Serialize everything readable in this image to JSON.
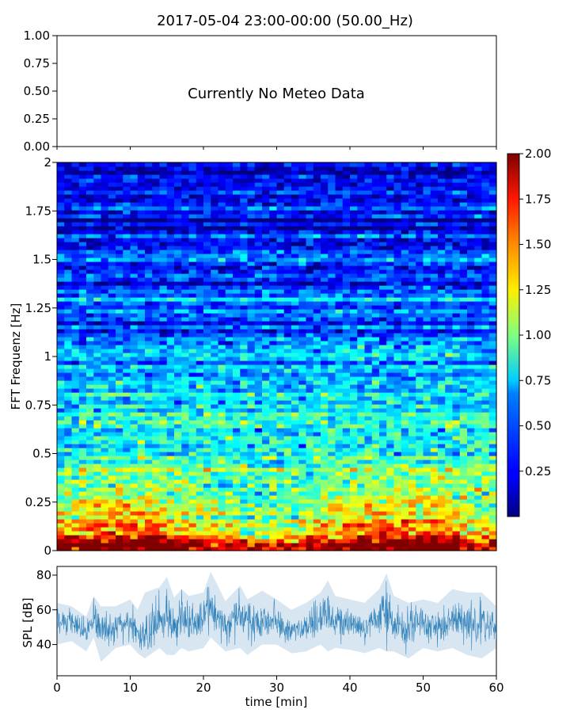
{
  "chart_data": [
    {
      "type": "line",
      "panel": "meteo",
      "title": "2017-05-04 23:00-00:00 (50.00_Hz)",
      "annotation": "Currently No Meteo Data",
      "ylim": [
        0,
        1
      ],
      "yticks": [
        "1.00",
        "0.75",
        "0.50",
        "0.25",
        "0.00"
      ],
      "series": []
    },
    {
      "type": "heatmap",
      "panel": "spectrogram",
      "ylabel": "FFT Frequenz [Hz]",
      "xlim": [
        0,
        60
      ],
      "ylim": [
        0,
        2
      ],
      "yticks": [
        "2",
        "1.75",
        "1.5",
        "1.25",
        "1",
        "0.75",
        "0.5",
        "0.25",
        "0"
      ],
      "colormap": "jet",
      "colorbar": {
        "range": [
          0,
          2
        ],
        "ticks": [
          "2.00",
          "1.75",
          "1.50",
          "1.25",
          "1.00",
          "0.75",
          "0.50",
          "0.25"
        ]
      },
      "mean_intensity_profile": [
        {
          "freq_hz": 0.0,
          "level": 1.9
        },
        {
          "freq_hz": 0.1,
          "level": 1.45
        },
        {
          "freq_hz": 0.25,
          "level": 1.1
        },
        {
          "freq_hz": 0.5,
          "level": 0.85
        },
        {
          "freq_hz": 0.75,
          "level": 0.7
        },
        {
          "freq_hz": 1.0,
          "level": 0.5
        },
        {
          "freq_hz": 1.25,
          "level": 0.42
        },
        {
          "freq_hz": 1.5,
          "level": 0.35
        },
        {
          "freq_hz": 1.75,
          "level": 0.22
        },
        {
          "freq_hz": 2.0,
          "level": 0.2
        }
      ]
    },
    {
      "type": "line",
      "panel": "spl",
      "xlabel": "time [min]",
      "ylabel": "SPL [dB]",
      "xlim": [
        0,
        60
      ],
      "ylim": [
        22,
        85
      ],
      "xticks": [
        "0",
        "10",
        "20",
        "30",
        "40",
        "50",
        "60"
      ],
      "yticks": [
        "80",
        "60",
        "40"
      ],
      "series": [
        {
          "color": "#1f77b4",
          "envelope": {
            "x": [
              0,
              2,
              4,
              5,
              6,
              8,
              10,
              11,
              12,
              14,
              15,
              16,
              17,
              18,
              20,
              21,
              23,
              25,
              26,
              28,
              30,
              32,
              34,
              36,
              37,
              38,
              40,
              42,
              44,
              45,
              46,
              48,
              50,
              52,
              54,
              56,
              58,
              60
            ],
            "mean": [
              52,
              54,
              46,
              56,
              49,
              51,
              53,
              47,
              46,
              55,
              58,
              49,
              57,
              53,
              56,
              60,
              50,
              57,
              52,
              55,
              53,
              48,
              50,
              55,
              58,
              53,
              52,
              50,
              57,
              60,
              53,
              50,
              52,
              50,
              55,
              54,
              51,
              51
            ],
            "min": [
              40,
              42,
              36,
              44,
              30,
              38,
              40,
              35,
              32,
              38,
              34,
              34,
              38,
              36,
              38,
              44,
              36,
              38,
              34,
              40,
              40,
              35,
              36,
              40,
              36,
              38,
              37,
              35,
              38,
              36,
              36,
              32,
              38,
              36,
              38,
              34,
              32,
              38
            ],
            "max": [
              64,
              62,
              56,
              68,
              62,
              62,
              66,
              60,
              70,
              73,
              79,
              67,
              72,
              68,
              70,
              82,
              65,
              74,
              66,
              71,
              66,
              60,
              64,
              70,
              77,
              68,
              66,
              64,
              72,
              81,
              68,
              64,
              66,
              64,
              72,
              70,
              70,
              62
            ]
          }
        }
      ]
    }
  ]
}
